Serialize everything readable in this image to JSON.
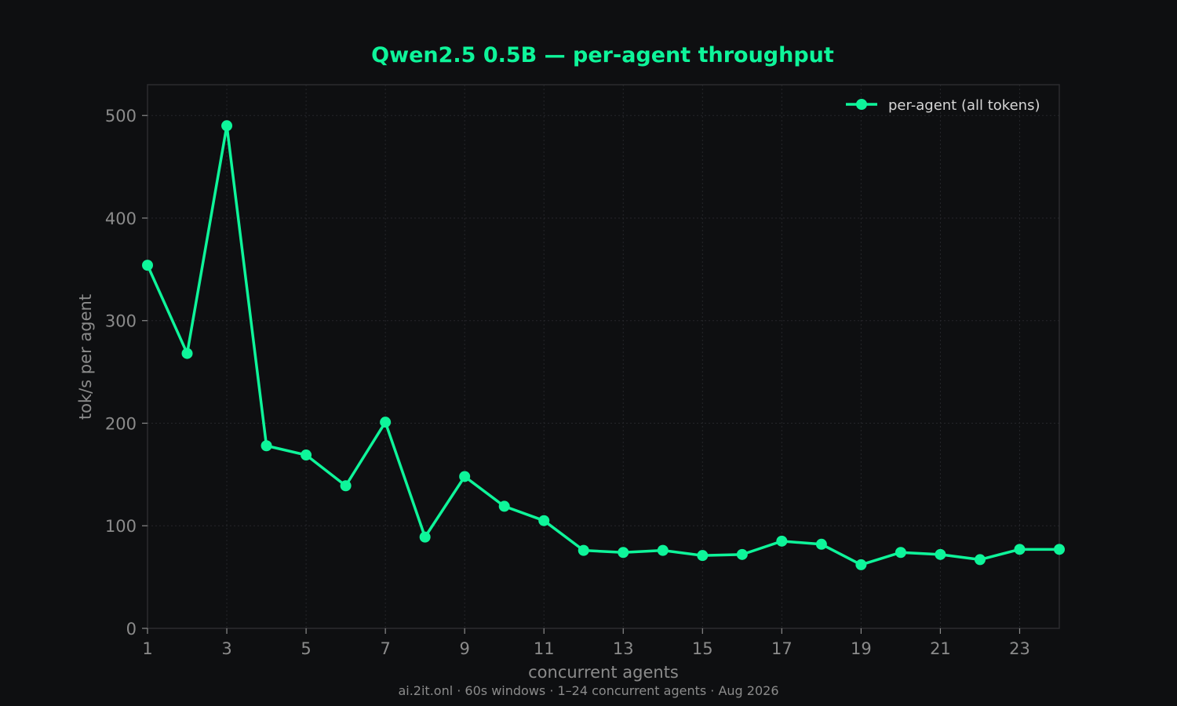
{
  "colors": {
    "background": "#0e0f11",
    "accent": "#0ef59a",
    "axis_text": "#8b8b8b",
    "frame": "#2b2c2f",
    "grid": "#25262a",
    "legend_text": "#d6d6d6"
  },
  "chart_data": {
    "type": "line",
    "title": "Qwen2.5 0.5B — per-agent throughput",
    "xlabel": "concurrent agents",
    "ylabel": "tok/s per agent",
    "xlim": [
      1,
      24
    ],
    "ylim": [
      0,
      530
    ],
    "xticks": [
      1,
      3,
      5,
      7,
      9,
      11,
      13,
      15,
      17,
      19,
      21,
      23
    ],
    "yticks": [
      0,
      100,
      200,
      300,
      400,
      500
    ],
    "grid": true,
    "legend_position": "top-right",
    "series": [
      {
        "name": "per-agent (all tokens)",
        "color": "#0ef59a",
        "marker": "circle",
        "x": [
          1,
          2,
          3,
          4,
          5,
          6,
          7,
          8,
          9,
          10,
          11,
          12,
          13,
          14,
          15,
          16,
          17,
          18,
          19,
          20,
          21,
          22,
          23,
          24
        ],
        "y": [
          354,
          268,
          490,
          178,
          169,
          139,
          201,
          89,
          148,
          119,
          105,
          76,
          74,
          76,
          71,
          72,
          85,
          82,
          62,
          74,
          72,
          67,
          77,
          77
        ]
      }
    ]
  },
  "footer": "ai.2it.onl · 60s windows · 1–24 concurrent agents · Aug 2026"
}
